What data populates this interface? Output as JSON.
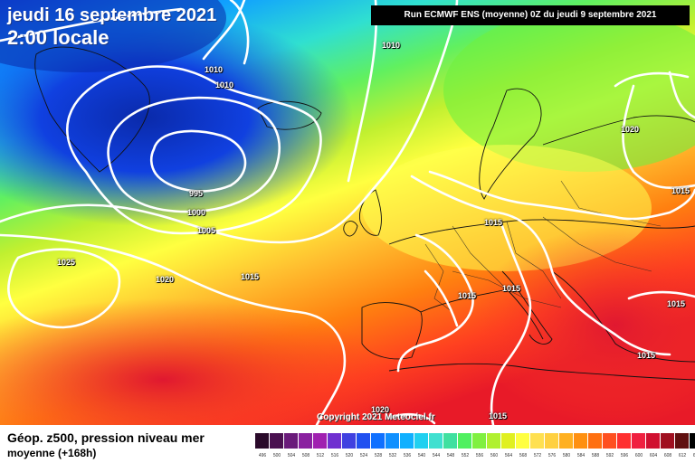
{
  "header": {
    "date_title": "jeudi 16 septembre 2021",
    "time_title": "2:00 locale",
    "run_info": "Run ECMWF ENS (moyenne) 0Z du jeudi 9 septembre 2021"
  },
  "copyright": "Copyright 2021 Meteociel.fr",
  "isobar_labels": [
    "1010",
    "1010",
    "1010",
    "1020",
    "1015",
    "995",
    "1000",
    "1005",
    "1015",
    "1025",
    "1020",
    "1015",
    "1015",
    "1015",
    "1015",
    "1015",
    "1020",
    "1015"
  ],
  "footer": {
    "title": "Géop. z500, pression niveau mer",
    "subtitle": "moyenne   (+168h)"
  },
  "legend": {
    "ticks": [
      "496",
      "500",
      "504",
      "508",
      "512",
      "516",
      "520",
      "524",
      "528",
      "532",
      "536",
      "540",
      "544",
      "548",
      "552",
      "556",
      "560",
      "564",
      "568",
      "572",
      "576",
      "580",
      "584",
      "588",
      "592",
      "596",
      "600",
      "604",
      "608",
      "612",
      "616"
    ],
    "colors": [
      "#2a0a2a",
      "#4a1050",
      "#6a1a7a",
      "#8a20a0",
      "#a020b0",
      "#7030d0",
      "#4040e0",
      "#2050f0",
      "#1070ff",
      "#1090ff",
      "#10b0ff",
      "#20d0f0",
      "#40e0d0",
      "#40e0a0",
      "#50f060",
      "#80f040",
      "#b0f030",
      "#e0f020",
      "#ffff40",
      "#ffe050",
      "#ffd040",
      "#ffb020",
      "#ff9010",
      "#ff7010",
      "#ff5020",
      "#ff3030",
      "#f02040",
      "#d01030",
      "#a01020",
      "#601010",
      "#000000"
    ]
  }
}
